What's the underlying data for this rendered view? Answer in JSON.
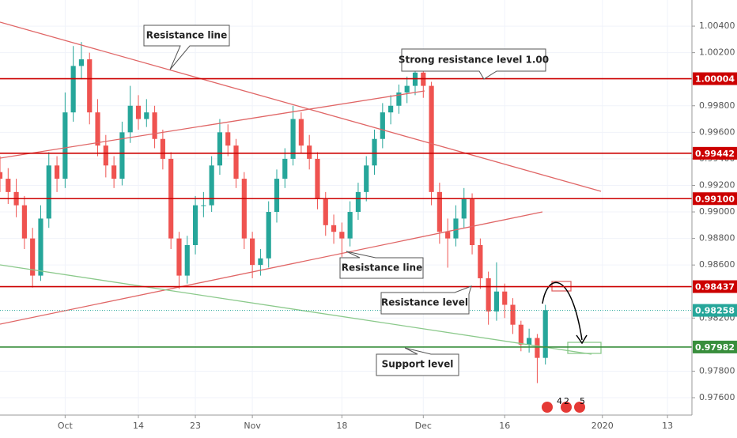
{
  "chart_data": {
    "type": "candlestick",
    "xlim": [
      0,
      85
    ],
    "ylim": [
      0.97469,
      1.00597
    ],
    "xticks": [
      {
        "value": 8,
        "label": "Oct"
      },
      {
        "value": 17,
        "label": "14"
      },
      {
        "value": 24,
        "label": "23"
      },
      {
        "value": 31,
        "label": "Nov"
      },
      {
        "value": 42,
        "label": "18"
      },
      {
        "value": 52,
        "label": "Dec"
      },
      {
        "value": 62,
        "label": "16"
      },
      {
        "value": 74,
        "label": "2020"
      },
      {
        "value": 82,
        "label": "13"
      }
    ],
    "yticks": [
      {
        "value": 0.976,
        "label": "0.97600"
      },
      {
        "value": 0.978,
        "label": "0.97800"
      },
      {
        "value": 0.982,
        "label": "0.98200"
      },
      {
        "value": 0.986,
        "label": "0.98600"
      },
      {
        "value": 0.988,
        "label": "0.98800"
      },
      {
        "value": 0.99,
        "label": "0.99000"
      },
      {
        "value": 0.992,
        "label": "0.99200"
      },
      {
        "value": 0.994,
        "label": "0.99400"
      },
      {
        "value": 0.996,
        "label": "0.99600"
      },
      {
        "value": 0.998,
        "label": "0.99800"
      },
      {
        "value": 1.002,
        "label": "1.00200"
      },
      {
        "value": 1.004,
        "label": "1.00400"
      }
    ],
    "grid": true,
    "up_color": "#26a69a",
    "down_color": "#ef5350",
    "x": [
      0,
      1,
      2,
      3,
      4,
      5,
      6,
      7,
      8,
      9,
      10,
      11,
      12,
      13,
      14,
      15,
      16,
      17,
      18,
      19,
      20,
      21,
      22,
      23,
      24,
      25,
      26,
      27,
      28,
      29,
      30,
      31,
      32,
      33,
      34,
      35,
      36,
      37,
      38,
      39,
      40,
      41,
      42,
      43,
      44,
      45,
      46,
      47,
      48,
      49,
      50,
      51,
      52,
      53,
      54,
      55,
      56,
      57,
      58,
      59,
      60,
      61,
      62,
      63,
      64,
      65,
      66,
      67
    ],
    "open": [
      0.993,
      0.9925,
      0.9915,
      0.9905,
      0.988,
      0.9852,
      0.9895,
      0.9935,
      0.9925,
      0.9975,
      1.001,
      1.0015,
      0.9975,
      0.995,
      0.9935,
      0.9925,
      0.996,
      0.998,
      0.997,
      0.9975,
      0.9955,
      0.994,
      0.988,
      0.9852,
      0.9875,
      0.9905,
      0.9905,
      0.9935,
      0.996,
      0.995,
      0.9925,
      0.988,
      0.986,
      0.9865,
      0.99,
      0.9925,
      0.994,
      0.997,
      0.995,
      0.994,
      0.991,
      0.989,
      0.9885,
      0.988,
      0.99,
      0.9915,
      0.9935,
      0.9955,
      0.9975,
      0.998,
      0.999,
      0.9995,
      1.0005,
      0.9995,
      0.9915,
      0.9885,
      0.988,
      0.9895,
      0.991,
      0.9875,
      0.985,
      0.9825,
      0.984,
      0.983,
      0.9815,
      0.98,
      0.9805,
      0.979
    ],
    "high": [
      0.9942,
      0.9933,
      0.9925,
      0.9912,
      0.9888,
      0.9905,
      0.9945,
      0.9942,
      0.999,
      1.0025,
      1.0028,
      1.002,
      0.9985,
      0.9958,
      0.9942,
      0.9968,
      0.9995,
      0.9988,
      0.9985,
      0.998,
      0.9962,
      0.9945,
      0.9885,
      0.9882,
      0.9912,
      0.9915,
      0.9942,
      0.997,
      0.9966,
      0.9955,
      0.993,
      0.9885,
      0.9872,
      0.9908,
      0.9932,
      0.9948,
      0.998,
      0.9975,
      0.9958,
      0.9945,
      0.9915,
      0.9898,
      0.9892,
      0.9908,
      0.9922,
      0.9942,
      0.9962,
      0.9982,
      0.9988,
      0.9996,
      1.0002,
      1.0022,
      1.0012,
      0.9998,
      0.9922,
      0.9895,
      0.9905,
      0.9918,
      0.9914,
      0.988,
      0.9855,
      0.9862,
      0.9846,
      0.9835,
      0.9818,
      0.9812,
      0.9808,
      0.983
    ],
    "low": [
      0.9915,
      0.9906,
      0.9896,
      0.9872,
      0.9843,
      0.9848,
      0.9888,
      0.9915,
      0.9918,
      0.9968,
      1.0,
      0.9966,
      0.9942,
      0.9926,
      0.9918,
      0.992,
      0.9952,
      0.9962,
      0.9964,
      0.9948,
      0.9932,
      0.9872,
      0.9842,
      0.9846,
      0.9868,
      0.9896,
      0.99,
      0.9928,
      0.9942,
      0.9918,
      0.9872,
      0.985,
      0.9852,
      0.9858,
      0.9892,
      0.9918,
      0.9935,
      0.9944,
      0.9932,
      0.9902,
      0.9882,
      0.9876,
      0.9866,
      0.9874,
      0.9894,
      0.9908,
      0.9928,
      0.9948,
      0.9966,
      0.9974,
      0.9982,
      0.9988,
      0.9986,
      0.9905,
      0.9876,
      0.9858,
      0.9874,
      0.9888,
      0.9868,
      0.9842,
      0.9815,
      0.9818,
      0.982,
      0.9808,
      0.9795,
      0.9794,
      0.9771,
      0.9785
    ],
    "close": [
      0.9925,
      0.9915,
      0.9905,
      0.988,
      0.9852,
      0.9895,
      0.9935,
      0.9925,
      0.9975,
      1.001,
      1.0015,
      0.9975,
      0.995,
      0.9935,
      0.9925,
      0.996,
      0.998,
      0.997,
      0.9975,
      0.9955,
      0.994,
      0.988,
      0.9852,
      0.9875,
      0.9905,
      0.9905,
      0.9935,
      0.996,
      0.995,
      0.9925,
      0.988,
      0.986,
      0.9865,
      0.99,
      0.9925,
      0.994,
      0.997,
      0.995,
      0.994,
      0.991,
      0.989,
      0.9885,
      0.988,
      0.99,
      0.9915,
      0.9935,
      0.9955,
      0.9975,
      0.998,
      0.999,
      0.9995,
      1.0005,
      0.9995,
      0.9915,
      0.9885,
      0.988,
      0.9895,
      0.991,
      0.9875,
      0.985,
      0.9825,
      0.984,
      0.983,
      0.9815,
      0.98,
      0.9805,
      0.979,
      0.9826
    ],
    "levels": [
      {
        "value": 1.00004,
        "color": "#cc0000"
      },
      {
        "value": 0.99442,
        "color": "#cc0000"
      },
      {
        "value": 0.991,
        "label": "0.99100",
        "color": "#cc0000"
      },
      {
        "value": 0.98437,
        "color": "#cc0000"
      },
      {
        "value": 0.98258,
        "color": "#26a69a",
        "style": "dotted"
      },
      {
        "value": 0.97982,
        "color": "#388e3c"
      }
    ],
    "annotations": [
      "Resistance line",
      "Strong resistance level 1.00",
      "Resistance line",
      "Resistance level",
      "Support level"
    ],
    "event_counts": [
      "4",
      "2",
      "5"
    ]
  }
}
